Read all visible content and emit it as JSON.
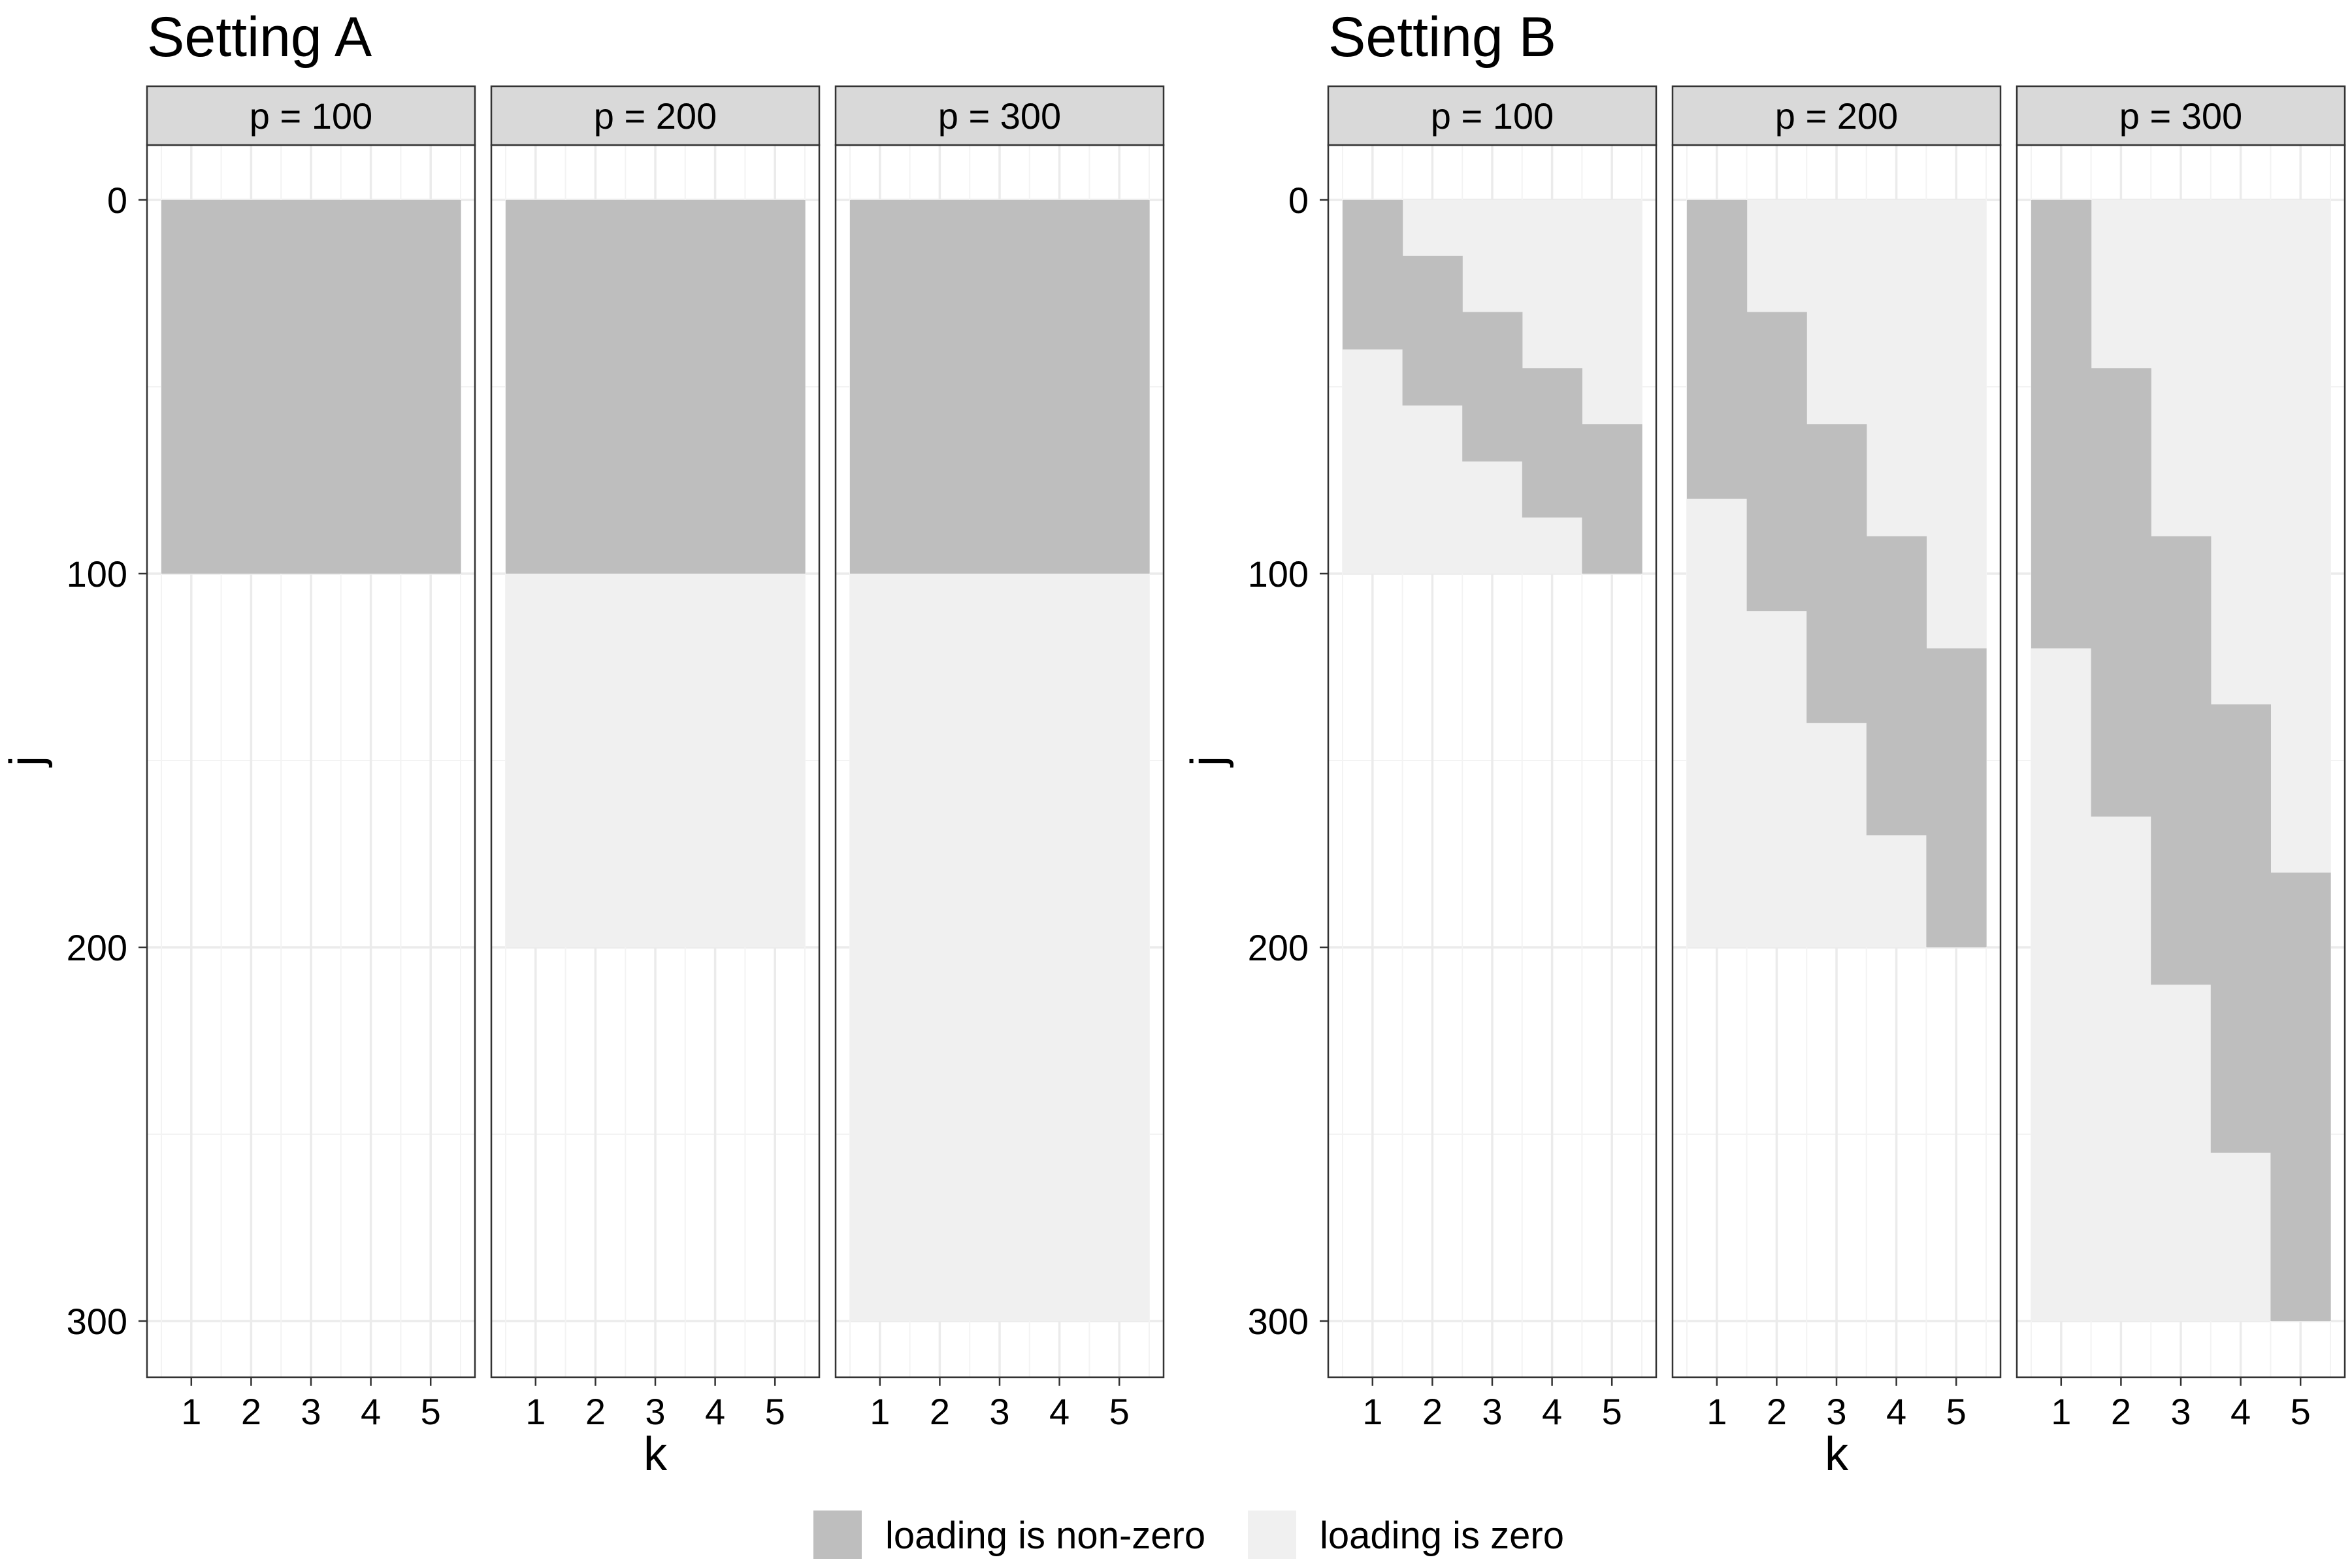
{
  "chart_data": {
    "type": "heatmap",
    "legend": {
      "placement": "bottom",
      "entries": [
        {
          "label": "loading is non-zero",
          "color": "#bebebe"
        },
        {
          "label": "loading is zero",
          "color": "#f0f0f0"
        }
      ]
    },
    "settings": [
      {
        "title": "Setting A",
        "xlabel": "k",
        "ylabel": "j",
        "x_ticks": [
          "1",
          "2",
          "3",
          "4",
          "5"
        ],
        "y_ticks": [
          "0",
          "100",
          "200",
          "300"
        ],
        "y_reversed": true,
        "ylim": [
          0,
          300
        ],
        "panels": [
          {
            "label": "p = 100",
            "p": 100,
            "blocks": [
              {
                "k": 1,
                "j_start": 0,
                "j_end": 100
              },
              {
                "k": 2,
                "j_start": 0,
                "j_end": 100
              },
              {
                "k": 3,
                "j_start": 0,
                "j_end": 100
              },
              {
                "k": 4,
                "j_start": 0,
                "j_end": 100
              },
              {
                "k": 5,
                "j_start": 0,
                "j_end": 100
              }
            ]
          },
          {
            "label": "p = 200",
            "p": 200,
            "blocks": [
              {
                "k": 1,
                "j_start": 0,
                "j_end": 100
              },
              {
                "k": 2,
                "j_start": 0,
                "j_end": 100
              },
              {
                "k": 3,
                "j_start": 0,
                "j_end": 100
              },
              {
                "k": 4,
                "j_start": 0,
                "j_end": 100
              },
              {
                "k": 5,
                "j_start": 0,
                "j_end": 100
              }
            ]
          },
          {
            "label": "p = 300",
            "p": 300,
            "blocks": [
              {
                "k": 1,
                "j_start": 0,
                "j_end": 100
              },
              {
                "k": 2,
                "j_start": 0,
                "j_end": 100
              },
              {
                "k": 3,
                "j_start": 0,
                "j_end": 100
              },
              {
                "k": 4,
                "j_start": 0,
                "j_end": 100
              },
              {
                "k": 5,
                "j_start": 0,
                "j_end": 100
              }
            ]
          }
        ]
      },
      {
        "title": "Setting B",
        "xlabel": "k",
        "ylabel": "j",
        "x_ticks": [
          "1",
          "2",
          "3",
          "4",
          "5"
        ],
        "y_ticks": [
          "0",
          "100",
          "200",
          "300"
        ],
        "y_reversed": true,
        "ylim": [
          0,
          300
        ],
        "panels": [
          {
            "label": "p = 100",
            "p": 100,
            "blocks": [
              {
                "k": 1,
                "j_start": 0,
                "j_end": 40
              },
              {
                "k": 2,
                "j_start": 15,
                "j_end": 55
              },
              {
                "k": 3,
                "j_start": 30,
                "j_end": 70
              },
              {
                "k": 4,
                "j_start": 45,
                "j_end": 85
              },
              {
                "k": 5,
                "j_start": 60,
                "j_end": 100
              }
            ]
          },
          {
            "label": "p = 200",
            "p": 200,
            "blocks": [
              {
                "k": 1,
                "j_start": 0,
                "j_end": 80
              },
              {
                "k": 2,
                "j_start": 30,
                "j_end": 110
              },
              {
                "k": 3,
                "j_start": 60,
                "j_end": 140
              },
              {
                "k": 4,
                "j_start": 90,
                "j_end": 170
              },
              {
                "k": 5,
                "j_start": 120,
                "j_end": 200
              }
            ]
          },
          {
            "label": "p = 300",
            "p": 300,
            "blocks": [
              {
                "k": 1,
                "j_start": 0,
                "j_end": 120
              },
              {
                "k": 2,
                "j_start": 45,
                "j_end": 165
              },
              {
                "k": 3,
                "j_start": 90,
                "j_end": 210
              },
              {
                "k": 4,
                "j_start": 135,
                "j_end": 255
              },
              {
                "k": 5,
                "j_start": 180,
                "j_end": 300
              }
            ]
          }
        ]
      }
    ]
  }
}
